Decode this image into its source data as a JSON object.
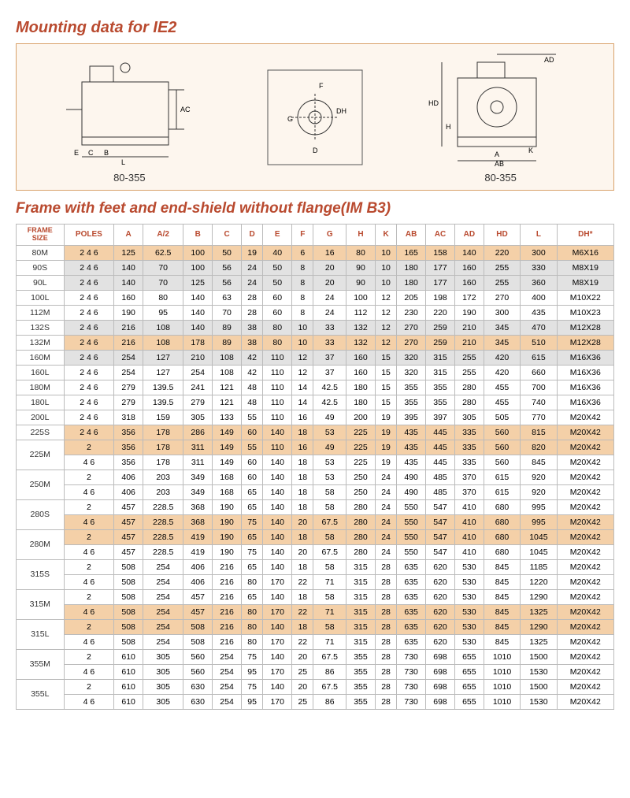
{
  "titles": {
    "main": "Mounting data for IE2",
    "section": "Frame with feet and end-shield without flange(IM B3)"
  },
  "diagram_caption": "80-355",
  "diagram_labels": {
    "left": [
      "E",
      "C",
      "B",
      "L",
      "AC"
    ],
    "mid": [
      "F",
      "DH",
      "G",
      "D"
    ],
    "right": [
      "AD",
      "HD",
      "H",
      "A",
      "K",
      "AB"
    ]
  },
  "table": {
    "columns": [
      "FRAME SIZE",
      "POLES",
      "A",
      "A/2",
      "B",
      "C",
      "D",
      "E",
      "F",
      "G",
      "H",
      "K",
      "AB",
      "AC",
      "AD",
      "HD",
      "L",
      "DH*"
    ],
    "rows": [
      {
        "frame": "80M",
        "rs": 1,
        "cls": "row-orange",
        "cells": [
          "2 4 6",
          "125",
          "62.5",
          "100",
          "50",
          "19",
          "40",
          "6",
          "16",
          "80",
          "10",
          "165",
          "158",
          "140",
          "220",
          "300",
          "M6X16"
        ]
      },
      {
        "frame": "90S",
        "rs": 1,
        "cls": "row-gray",
        "cells": [
          "2 4 6",
          "140",
          "70",
          "100",
          "56",
          "24",
          "50",
          "8",
          "20",
          "90",
          "10",
          "180",
          "177",
          "160",
          "255",
          "330",
          "M8X19"
        ]
      },
      {
        "frame": "90L",
        "rs": 1,
        "cls": "row-gray",
        "cells": [
          "2 4 6",
          "140",
          "70",
          "125",
          "56",
          "24",
          "50",
          "8",
          "20",
          "90",
          "10",
          "180",
          "177",
          "160",
          "255",
          "360",
          "M8X19"
        ]
      },
      {
        "frame": "100L",
        "rs": 1,
        "cls": "row-white",
        "cells": [
          "2 4 6",
          "160",
          "80",
          "140",
          "63",
          "28",
          "60",
          "8",
          "24",
          "100",
          "12",
          "205",
          "198",
          "172",
          "270",
          "400",
          "M10X22"
        ]
      },
      {
        "frame": "112M",
        "rs": 1,
        "cls": "row-white",
        "cells": [
          "2 4 6",
          "190",
          "95",
          "140",
          "70",
          "28",
          "60",
          "8",
          "24",
          "112",
          "12",
          "230",
          "220",
          "190",
          "300",
          "435",
          "M10X23"
        ]
      },
      {
        "frame": "132S",
        "rs": 1,
        "cls": "row-gray",
        "cells": [
          "2 4 6",
          "216",
          "108",
          "140",
          "89",
          "38",
          "80",
          "10",
          "33",
          "132",
          "12",
          "270",
          "259",
          "210",
          "345",
          "470",
          "M12X28"
        ]
      },
      {
        "frame": "132M",
        "rs": 1,
        "cls": "row-orange",
        "cells": [
          "2 4 6",
          "216",
          "108",
          "178",
          "89",
          "38",
          "80",
          "10",
          "33",
          "132",
          "12",
          "270",
          "259",
          "210",
          "345",
          "510",
          "M12X28"
        ]
      },
      {
        "frame": "160M",
        "rs": 1,
        "cls": "row-gray",
        "cells": [
          "2 4 6",
          "254",
          "127",
          "210",
          "108",
          "42",
          "110",
          "12",
          "37",
          "160",
          "15",
          "320",
          "315",
          "255",
          "420",
          "615",
          "M16X36"
        ]
      },
      {
        "frame": "160L",
        "rs": 1,
        "cls": "row-white",
        "cells": [
          "2 4 6",
          "254",
          "127",
          "254",
          "108",
          "42",
          "110",
          "12",
          "37",
          "160",
          "15",
          "320",
          "315",
          "255",
          "420",
          "660",
          "M16X36"
        ]
      },
      {
        "frame": "180M",
        "rs": 1,
        "cls": "row-white",
        "cells": [
          "2 4 6",
          "279",
          "139.5",
          "241",
          "121",
          "48",
          "110",
          "14",
          "42.5",
          "180",
          "15",
          "355",
          "355",
          "280",
          "455",
          "700",
          "M16X36"
        ]
      },
      {
        "frame": "180L",
        "rs": 1,
        "cls": "row-white",
        "cells": [
          "2 4 6",
          "279",
          "139.5",
          "279",
          "121",
          "48",
          "110",
          "14",
          "42.5",
          "180",
          "15",
          "355",
          "355",
          "280",
          "455",
          "740",
          "M16X36"
        ]
      },
      {
        "frame": "200L",
        "rs": 1,
        "cls": "row-white",
        "cells": [
          "2 4 6",
          "318",
          "159",
          "305",
          "133",
          "55",
          "110",
          "16",
          "49",
          "200",
          "19",
          "395",
          "397",
          "305",
          "505",
          "770",
          "M20X42"
        ]
      },
      {
        "frame": "225S",
        "rs": 1,
        "cls": "row-orange",
        "cells": [
          "2 4 6",
          "356",
          "178",
          "286",
          "149",
          "60",
          "140",
          "18",
          "53",
          "225",
          "19",
          "435",
          "445",
          "335",
          "560",
          "815",
          "M20X42"
        ]
      },
      {
        "frame": "225M",
        "rs": 2,
        "cls": "row-orange",
        "cells": [
          "2",
          "356",
          "178",
          "311",
          "149",
          "55",
          "110",
          "16",
          "49",
          "225",
          "19",
          "435",
          "445",
          "335",
          "560",
          "820",
          "M20X42"
        ]
      },
      {
        "frame": "",
        "rs": 0,
        "cls": "row-white",
        "cells": [
          "4 6",
          "356",
          "178",
          "311",
          "149",
          "60",
          "140",
          "18",
          "53",
          "225",
          "19",
          "435",
          "445",
          "335",
          "560",
          "845",
          "M20X42"
        ]
      },
      {
        "frame": "250M",
        "rs": 2,
        "cls": "row-white",
        "cells": [
          "2",
          "406",
          "203",
          "349",
          "168",
          "60",
          "140",
          "18",
          "53",
          "250",
          "24",
          "490",
          "485",
          "370",
          "615",
          "920",
          "M20X42"
        ]
      },
      {
        "frame": "",
        "rs": 0,
        "cls": "row-white",
        "cells": [
          "4 6",
          "406",
          "203",
          "349",
          "168",
          "65",
          "140",
          "18",
          "58",
          "250",
          "24",
          "490",
          "485",
          "370",
          "615",
          "920",
          "M20X42"
        ]
      },
      {
        "frame": "280S",
        "rs": 2,
        "cls": "row-white",
        "cells": [
          "2",
          "457",
          "228.5",
          "368",
          "190",
          "65",
          "140",
          "18",
          "58",
          "280",
          "24",
          "550",
          "547",
          "410",
          "680",
          "995",
          "M20X42"
        ]
      },
      {
        "frame": "",
        "rs": 0,
        "cls": "row-orange",
        "cells": [
          "4 6",
          "457",
          "228.5",
          "368",
          "190",
          "75",
          "140",
          "20",
          "67.5",
          "280",
          "24",
          "550",
          "547",
          "410",
          "680",
          "995",
          "M20X42"
        ]
      },
      {
        "frame": "280M",
        "rs": 2,
        "cls": "row-orange",
        "cells": [
          "2",
          "457",
          "228.5",
          "419",
          "190",
          "65",
          "140",
          "18",
          "58",
          "280",
          "24",
          "550",
          "547",
          "410",
          "680",
          "1045",
          "M20X42"
        ]
      },
      {
        "frame": "",
        "rs": 0,
        "cls": "row-white",
        "cells": [
          "4 6",
          "457",
          "228.5",
          "419",
          "190",
          "75",
          "140",
          "20",
          "67.5",
          "280",
          "24",
          "550",
          "547",
          "410",
          "680",
          "1045",
          "M20X42"
        ]
      },
      {
        "frame": "315S",
        "rs": 2,
        "cls": "row-white",
        "cells": [
          "2",
          "508",
          "254",
          "406",
          "216",
          "65",
          "140",
          "18",
          "58",
          "315",
          "28",
          "635",
          "620",
          "530",
          "845",
          "1185",
          "M20X42"
        ]
      },
      {
        "frame": "",
        "rs": 0,
        "cls": "row-white",
        "cells": [
          "4 6",
          "508",
          "254",
          "406",
          "216",
          "80",
          "170",
          "22",
          "71",
          "315",
          "28",
          "635",
          "620",
          "530",
          "845",
          "1220",
          "M20X42"
        ]
      },
      {
        "frame": "315M",
        "rs": 2,
        "cls": "row-white",
        "cells": [
          "2",
          "508",
          "254",
          "457",
          "216",
          "65",
          "140",
          "18",
          "58",
          "315",
          "28",
          "635",
          "620",
          "530",
          "845",
          "1290",
          "M20X42"
        ]
      },
      {
        "frame": "",
        "rs": 0,
        "cls": "row-orange",
        "cells": [
          "4 6",
          "508",
          "254",
          "457",
          "216",
          "80",
          "170",
          "22",
          "71",
          "315",
          "28",
          "635",
          "620",
          "530",
          "845",
          "1325",
          "M20X42"
        ]
      },
      {
        "frame": "315L",
        "rs": 2,
        "cls": "row-orange",
        "cells": [
          "2",
          "508",
          "254",
          "508",
          "216",
          "80",
          "140",
          "18",
          "58",
          "315",
          "28",
          "635",
          "620",
          "530",
          "845",
          "1290",
          "M20X42"
        ]
      },
      {
        "frame": "",
        "rs": 0,
        "cls": "row-white",
        "cells": [
          "4 6",
          "508",
          "254",
          "508",
          "216",
          "80",
          "170",
          "22",
          "71",
          "315",
          "28",
          "635",
          "620",
          "530",
          "845",
          "1325",
          "M20X42"
        ]
      },
      {
        "frame": "355M",
        "rs": 2,
        "cls": "row-white",
        "cells": [
          "2",
          "610",
          "305",
          "560",
          "254",
          "75",
          "140",
          "20",
          "67.5",
          "355",
          "28",
          "730",
          "698",
          "655",
          "1010",
          "1500",
          "M20X42"
        ]
      },
      {
        "frame": "",
        "rs": 0,
        "cls": "row-white",
        "cells": [
          "4 6",
          "610",
          "305",
          "560",
          "254",
          "95",
          "170",
          "25",
          "86",
          "355",
          "28",
          "730",
          "698",
          "655",
          "1010",
          "1530",
          "M20X42"
        ]
      },
      {
        "frame": "355L",
        "rs": 2,
        "cls": "row-white",
        "cells": [
          "2",
          "610",
          "305",
          "630",
          "254",
          "75",
          "140",
          "20",
          "67.5",
          "355",
          "28",
          "730",
          "698",
          "655",
          "1010",
          "1500",
          "M20X42"
        ]
      },
      {
        "frame": "",
        "rs": 0,
        "cls": "row-white",
        "cells": [
          "4 6",
          "610",
          "305",
          "630",
          "254",
          "95",
          "170",
          "25",
          "86",
          "355",
          "28",
          "730",
          "698",
          "655",
          "1010",
          "1530",
          "M20X42"
        ]
      }
    ]
  },
  "colors": {
    "heading": "#b94a2f",
    "orange_row": "#f4d0a8",
    "gray_row": "#e2e2e2",
    "diagram_bg": "#fdf6ee",
    "diagram_border": "#d9a26b"
  }
}
